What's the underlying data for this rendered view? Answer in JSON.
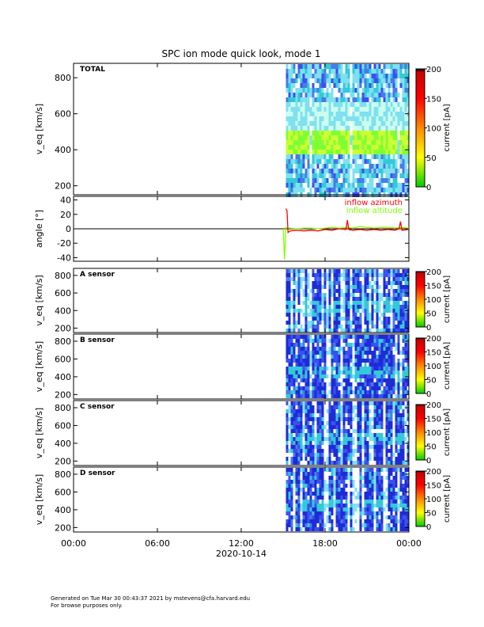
{
  "title": "SPC ion mode quick look, mode 1",
  "x_ticks": [
    "00:00",
    "06:00",
    "12:00",
    "18:00",
    "00:00"
  ],
  "x_date": "2020-10-14",
  "footer": {
    "line1": "Generated on Tue Mar 30 00:43:37 2021 by mstevens@cfa.harvard.edu",
    "line2": "For browse purposes only."
  },
  "colors": {
    "azimuth": "#ff0000",
    "altitude": "#7fff00",
    "colorbar_stops": [
      "#00cc00",
      "#ffff00",
      "#ff8800",
      "#ff0000",
      "#cc0000",
      "#000000"
    ],
    "spectro_palette": [
      "#1f2bd6",
      "#3a50f0",
      "#4a7ae8",
      "#33c9d9",
      "#7fe0f0",
      "#ffffff"
    ],
    "spectro_band": [
      "#7fff33",
      "#ccff33"
    ]
  },
  "chart_data": [
    {
      "type": "heatmap",
      "panel": "TOTAL",
      "label": "TOTAL",
      "ylabel": "v_eq [km/s]",
      "yticks": [
        200,
        400,
        600,
        800
      ],
      "ylim": [
        150,
        880
      ],
      "xlim_hours": [
        0,
        24
      ],
      "data_start_hour": 15.2,
      "band_kms": [
        400,
        520
      ],
      "colorbar": {
        "label": "current [pA]",
        "ticks": [
          0,
          50,
          100,
          150,
          200
        ],
        "range": [
          0,
          200
        ]
      }
    },
    {
      "type": "line",
      "panel": "angle",
      "ylabel": "angle [°]",
      "yticks": [
        -40,
        -20,
        0,
        20,
        40
      ],
      "ylim": [
        -45,
        45
      ],
      "xlim_hours": [
        0,
        24
      ],
      "legend_position": "top-right",
      "series": [
        {
          "name": "inflow azimuth",
          "color": "#ff0000",
          "x": [
            15.2,
            15.28,
            15.35,
            15.5,
            16,
            16.5,
            17,
            17.5,
            18,
            18.5,
            19,
            19.5,
            19.6,
            19.7,
            20,
            20.5,
            21,
            21.5,
            22,
            22.5,
            23,
            23.3,
            23.4,
            23.5,
            24
          ],
          "y": [
            28,
            25,
            -5,
            -3,
            -2,
            -3,
            -2,
            -3,
            -1,
            -2,
            0,
            -1,
            12,
            -1,
            -2,
            -1,
            -2,
            -1,
            -2,
            -1,
            -2,
            0,
            10,
            -2,
            -1
          ]
        },
        {
          "name": "inflow altitude",
          "color": "#7fff00",
          "x": [
            15.0,
            15.1,
            15.2,
            15.3,
            15.5,
            16,
            16.5,
            17,
            17.5,
            18,
            18.5,
            19,
            19.5,
            20,
            20.5,
            21,
            21.5,
            22,
            22.5,
            23,
            23.5,
            24
          ],
          "y": [
            0,
            -42,
            2,
            1,
            1,
            0,
            1,
            1,
            0,
            1,
            2,
            1,
            2,
            1,
            3,
            2,
            1,
            2,
            2,
            1,
            2,
            1
          ]
        }
      ]
    },
    {
      "type": "heatmap",
      "panel": "A",
      "label": "A sensor",
      "ylabel": "v_eq [km/s]",
      "yticks": [
        200,
        400,
        600,
        800
      ],
      "ylim": [
        150,
        880
      ],
      "data_start_hour": 15.2,
      "colorbar": {
        "label": "current [pA]",
        "ticks": [
          0,
          50,
          100,
          150,
          200
        ],
        "range": [
          0,
          200
        ]
      }
    },
    {
      "type": "heatmap",
      "panel": "B",
      "label": "B sensor",
      "ylabel": "v_eq [km/s]",
      "yticks": [
        200,
        400,
        600,
        800
      ],
      "ylim": [
        150,
        880
      ],
      "data_start_hour": 15.2,
      "colorbar": {
        "label": "current [pA]",
        "ticks": [
          0,
          50,
          100,
          150,
          200
        ],
        "range": [
          0,
          200
        ]
      }
    },
    {
      "type": "heatmap",
      "panel": "C",
      "label": "C sensor",
      "ylabel": "v_eq [km/s]",
      "yticks": [
        200,
        400,
        600,
        800
      ],
      "ylim": [
        150,
        880
      ],
      "data_start_hour": 15.2,
      "colorbar": {
        "label": "current [pA]",
        "ticks": [
          0,
          50,
          100,
          150,
          200
        ],
        "range": [
          0,
          200
        ]
      }
    },
    {
      "type": "heatmap",
      "panel": "D",
      "label": "D sensor",
      "ylabel": "v_eq [km/s]",
      "yticks": [
        200,
        400,
        600,
        800
      ],
      "ylim": [
        150,
        880
      ],
      "data_start_hour": 15.2,
      "colorbar": {
        "label": "current [pA]",
        "ticks": [
          0,
          50,
          100,
          150,
          200
        ],
        "range": [
          0,
          200
        ]
      }
    }
  ]
}
